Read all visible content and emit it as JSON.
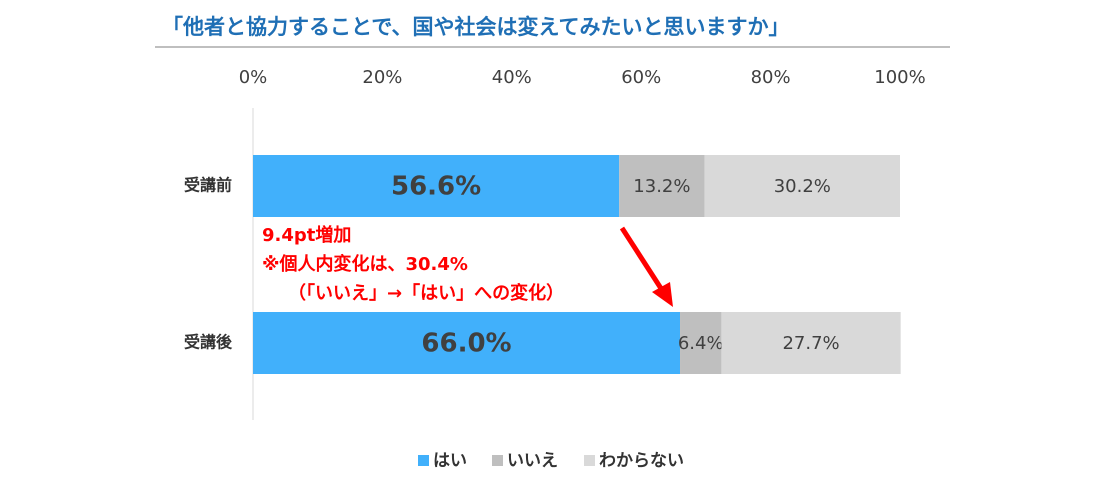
{
  "chart_data": {
    "type": "stacked-bar-horizontal",
    "title": "「他者と協力することで、国や社会は変えてみたいと思いますか」",
    "categories": [
      "受講前",
      "受講後"
    ],
    "series": [
      {
        "name": "はい",
        "color": "#41b0fb",
        "values": [
          56.6,
          66.0
        ],
        "value_labels": [
          "56.6%",
          "66.0%"
        ]
      },
      {
        "name": "いいえ",
        "color": "#bfbfbf",
        "values": [
          13.2,
          6.4
        ],
        "value_labels": [
          "13.2%",
          "6.4%"
        ]
      },
      {
        "name": "わからない",
        "color": "#d9d9d9",
        "values": [
          30.2,
          27.7
        ],
        "value_labels": [
          "30.2%",
          "27.7%"
        ]
      }
    ],
    "xlim": [
      0,
      100
    ],
    "xticks": [
      {
        "value": 0,
        "label": "0%"
      },
      {
        "value": 20,
        "label": "20%"
      },
      {
        "value": 40,
        "label": "40%"
      },
      {
        "value": 60,
        "label": "60%"
      },
      {
        "value": 80,
        "label": "80%"
      },
      {
        "value": 100,
        "label": "100%"
      }
    ],
    "annotations": [
      "9.4pt増加",
      "※個人内変化は、30.4%",
      "（「いいえ」→「はい」への変化）"
    ],
    "legend": "bottom"
  }
}
